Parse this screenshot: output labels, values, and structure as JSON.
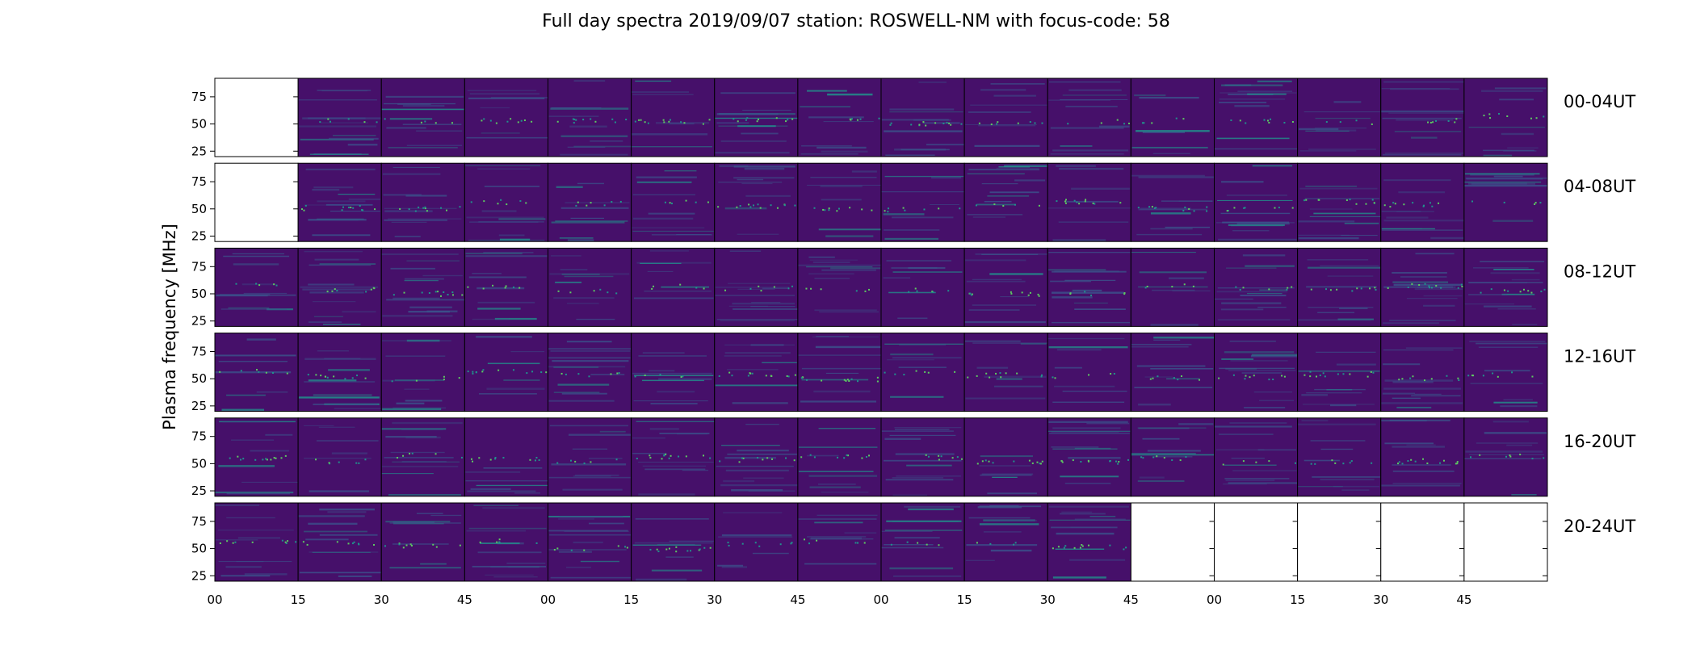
{
  "chart_data": {
    "type": "heatmap",
    "title": "Full day spectra 2019/09/07 station: ROSWELL-NM with focus-code: 58",
    "ylabel": "Plasma frequency [MHz]",
    "ytick_labels": [
      "25",
      "50",
      "75"
    ],
    "y_ticks": [
      25,
      50,
      75
    ],
    "ylim": [
      20,
      92
    ],
    "x_tick_labels": [
      "00",
      "15",
      "30",
      "45",
      "00",
      "15",
      "30",
      "45",
      "00",
      "15",
      "30",
      "45",
      "00",
      "15",
      "30",
      "45"
    ],
    "rows": [
      {
        "label": "00-04UT",
        "panels_with_data": [
          false,
          true,
          true,
          true,
          true,
          true,
          true,
          true,
          true,
          true,
          true,
          true,
          true,
          true,
          true,
          true
        ]
      },
      {
        "label": "04-08UT",
        "panels_with_data": [
          false,
          true,
          true,
          true,
          true,
          true,
          true,
          true,
          true,
          true,
          true,
          true,
          true,
          true,
          true,
          true
        ]
      },
      {
        "label": "08-12UT",
        "panels_with_data": [
          true,
          true,
          true,
          true,
          true,
          true,
          true,
          true,
          true,
          true,
          true,
          true,
          true,
          true,
          true,
          true
        ]
      },
      {
        "label": "12-16UT",
        "panels_with_data": [
          true,
          true,
          true,
          true,
          true,
          true,
          true,
          true,
          true,
          true,
          true,
          true,
          true,
          true,
          true,
          true
        ]
      },
      {
        "label": "16-20UT",
        "panels_with_data": [
          true,
          true,
          true,
          true,
          true,
          true,
          true,
          true,
          true,
          true,
          true,
          true,
          true,
          true,
          true,
          true
        ]
      },
      {
        "label": "20-24UT",
        "panels_with_data": [
          true,
          true,
          true,
          true,
          true,
          true,
          true,
          true,
          true,
          true,
          true,
          false,
          false,
          false,
          false,
          false
        ]
      }
    ],
    "colormap": [
      "#440154",
      "#3b528b",
      "#21918c",
      "#5ec962",
      "#fde725"
    ],
    "background_color": "#46106a"
  }
}
